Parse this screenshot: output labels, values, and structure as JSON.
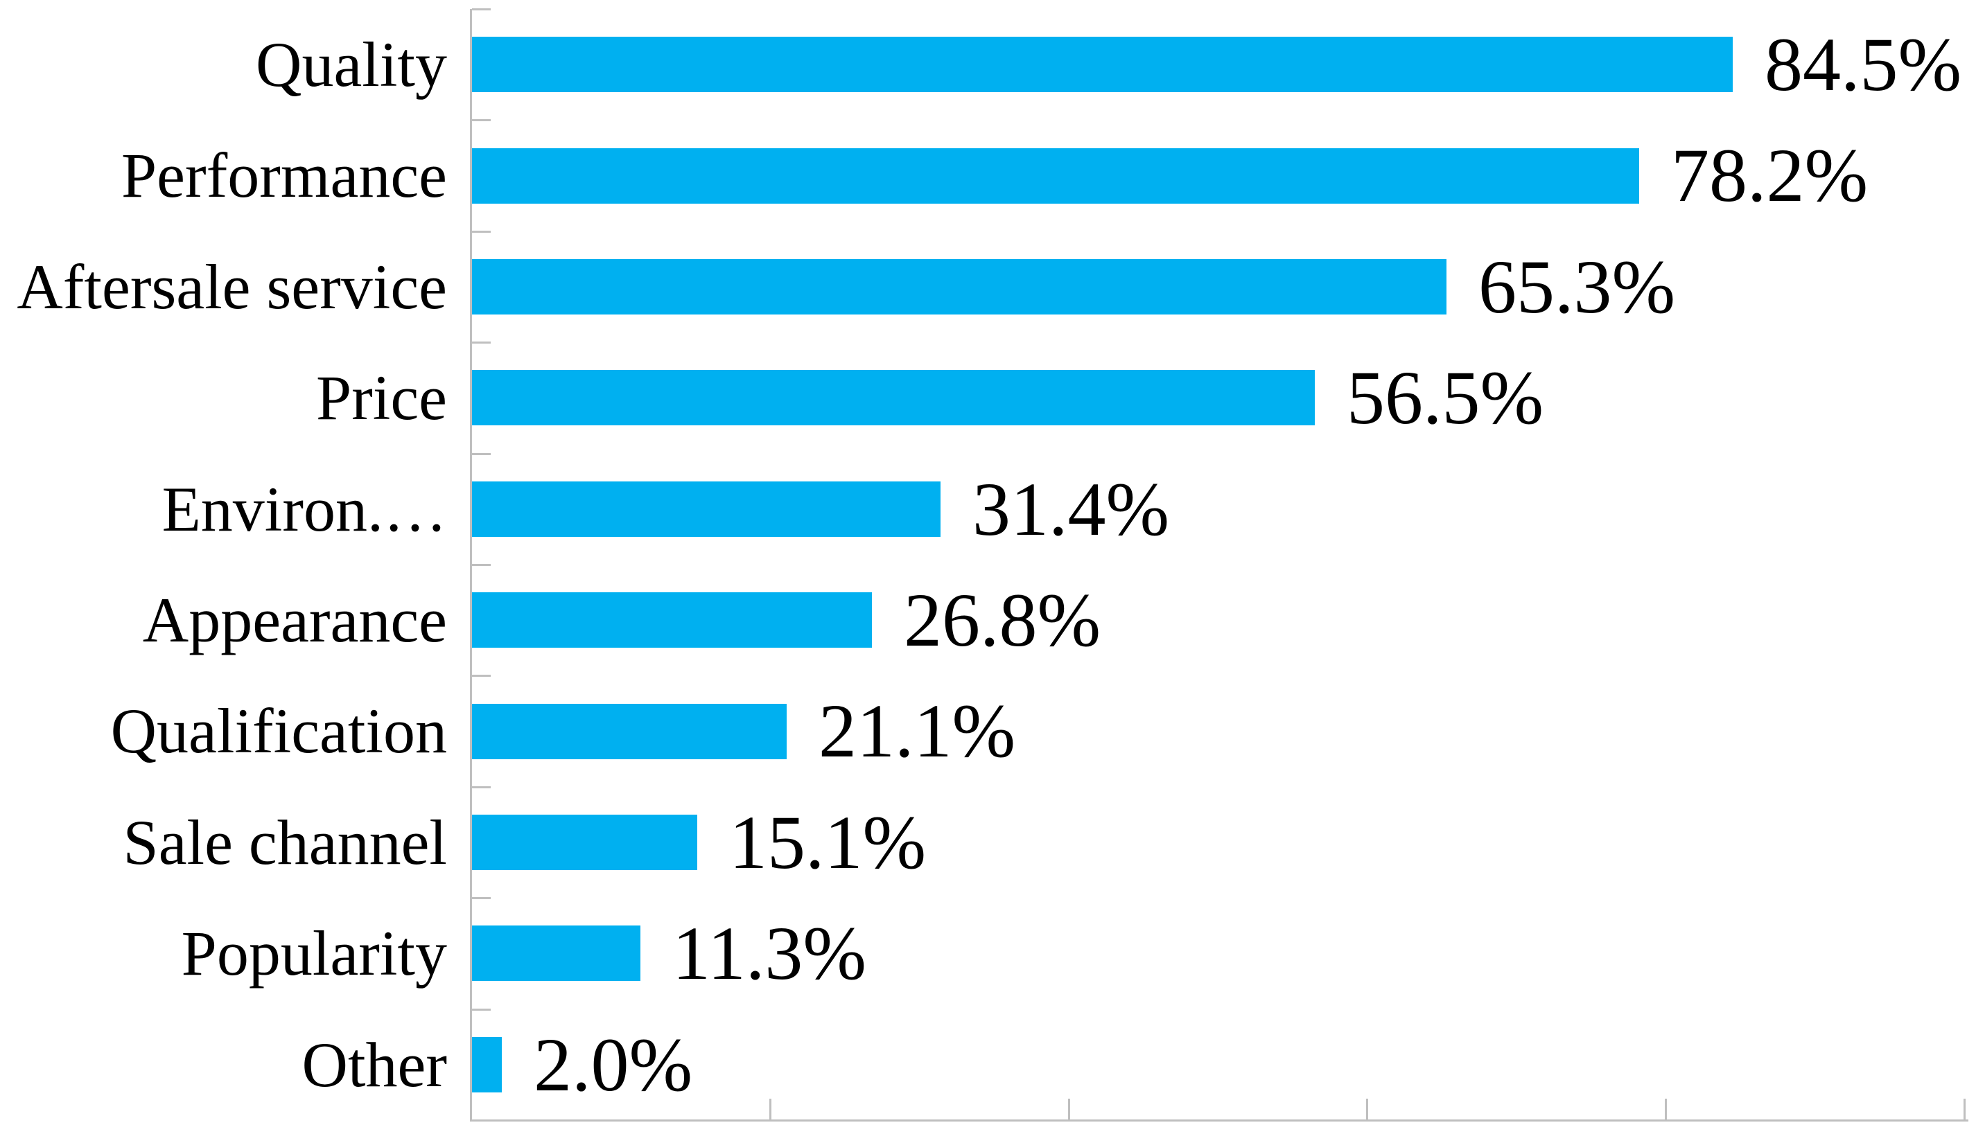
{
  "chart_data": {
    "type": "bar",
    "orientation": "horizontal",
    "title": "",
    "categories": [
      "Quality",
      "Performance",
      "Aftersale service",
      "Price",
      "Environ.…",
      "Appearance",
      "Qualification",
      "Sale channel",
      "Popularity",
      "Other"
    ],
    "values": [
      84.5,
      78.2,
      65.3,
      56.5,
      31.4,
      26.8,
      21.1,
      15.1,
      11.3,
      2.0
    ],
    "value_labels": [
      "84.5%",
      "78.2%",
      "65.3%",
      "56.5%",
      "31.4%",
      "26.8%",
      "21.1%",
      "15.1%",
      "11.3%",
      "2.0%"
    ],
    "xlim": [
      0,
      100
    ],
    "x_tick_positions": [
      20,
      40,
      60,
      80,
      100
    ],
    "grid": false,
    "legend": false,
    "axis_tick_style": "inside",
    "bar_color": "#00B0F0",
    "axis_color": "#BFBFBF",
    "text_color": "#000000",
    "background_color": "#FFFFFF"
  }
}
